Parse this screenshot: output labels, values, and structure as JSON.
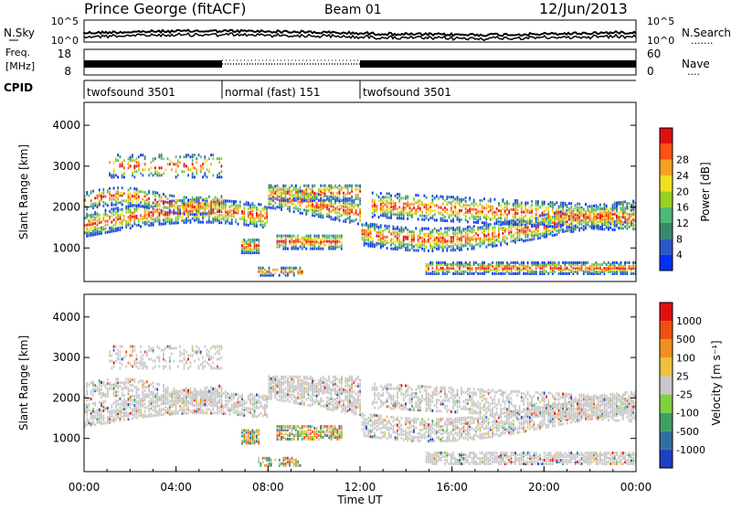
{
  "header": {
    "station": "Prince George (fitACF)",
    "beam": "Beam 01",
    "date": "12/Jun/2013"
  },
  "strip_panels": {
    "nsky": {
      "label": "N.Sky",
      "ticks": [
        "10^5",
        "10^0"
      ],
      "right_label": "N.Search",
      "right_ticks": [
        "10^5",
        "10^0"
      ],
      "right_legend": "......."
    },
    "freq": {
      "label_line1": "Freq.",
      "label_line2": "[MHz]",
      "ticks": [
        "18",
        "8"
      ],
      "right_label": "Nave",
      "right_ticks": [
        "60",
        "0"
      ],
      "right_legend": "...."
    },
    "cpid": {
      "label": "CPID",
      "segments": [
        {
          "name": "twofsound 3501",
          "start_hour": 0,
          "end_hour": 6
        },
        {
          "name": "normal (fast) 151",
          "start_hour": 6,
          "end_hour": 12
        },
        {
          "name": "twofsound 3501",
          "start_hour": 12,
          "end_hour": 24
        }
      ]
    }
  },
  "time_axis": {
    "title": "Time UT",
    "tick_labels": [
      "00:00",
      "04:00",
      "08:00",
      "12:00",
      "16:00",
      "20:00",
      "00:00"
    ],
    "range_hours": [
      0,
      24
    ]
  },
  "chart_data": [
    {
      "type": "heatmap",
      "name": "power",
      "ylabel": "Slant Range [km]",
      "ylim": [
        180,
        4560
      ],
      "y_ticks": [
        1000,
        2000,
        3000,
        4000
      ],
      "xlim_hours": [
        0,
        24
      ],
      "colorbar": {
        "title": "Power [dB]",
        "ticks": [
          "4",
          "8",
          "12",
          "16",
          "20",
          "24",
          "28"
        ],
        "colors": [
          "#0030ff",
          "#2a58c8",
          "#3a8a6a",
          "#4fb87a",
          "#9ad020",
          "#f0e020",
          "#f5a020",
          "#ff5010",
          "#e01010"
        ]
      }
    },
    {
      "type": "heatmap",
      "name": "velocity",
      "ylabel": "Slant Range [km]",
      "ylim": [
        180,
        4560
      ],
      "y_ticks": [
        1000,
        2000,
        3000,
        4000
      ],
      "xlim_hours": [
        0,
        24
      ],
      "colorbar": {
        "title": "Velocity [m s⁻¹]",
        "ticks": [
          "1000",
          "500",
          "100",
          "25",
          "-25",
          "-100",
          "-500",
          "-1000"
        ],
        "colors": [
          "#2040c0",
          "#3070a0",
          "#40a060",
          "#80d040",
          "#c8c8c8",
          "#f0c040",
          "#f09020",
          "#f05010",
          "#e01010"
        ]
      }
    }
  ]
}
